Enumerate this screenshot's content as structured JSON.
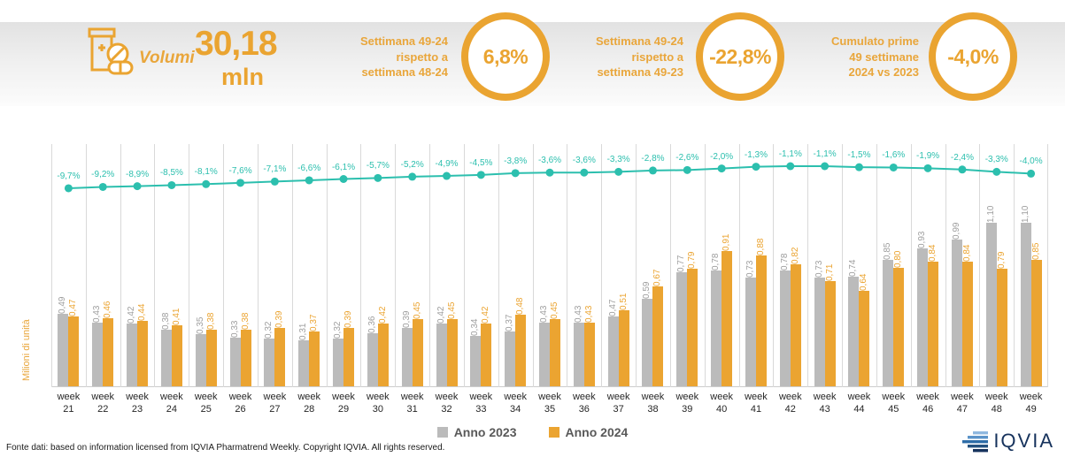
{
  "header": {
    "volumes_label": "Volumi",
    "volume_value": "30,18",
    "volume_unit": "mln",
    "kpis": [
      {
        "label": "Settimana 49-24\nrispetto a\nsettimana 48-24",
        "value": "6,8%"
      },
      {
        "label": "Settimana 49-24\nrispetto a\nsettimana 49-23",
        "value": "-22,8%"
      },
      {
        "label": "Cumulato prime\n49 settimane\n2024 vs 2023",
        "value": "-4,0%"
      }
    ]
  },
  "chart_data": {
    "type": "bar",
    "title": "",
    "ylabel": "Milioni di unità",
    "ylim": [
      0,
      1.2
    ],
    "grid": "vertical",
    "legend_position": "bottom",
    "categories": [
      "week 21",
      "week 22",
      "week 23",
      "week 24",
      "week 25",
      "week 26",
      "week 27",
      "week 28",
      "week 29",
      "week 30",
      "week 31",
      "week 32",
      "week 33",
      "week 34",
      "week 35",
      "week 36",
      "week 37",
      "week 38",
      "week 39",
      "week 40",
      "week 41",
      "week 42",
      "week 43",
      "week 44",
      "week 45",
      "week 46",
      "week 47",
      "week 48",
      "week 49"
    ],
    "series": [
      {
        "name": "Anno 2023",
        "color": "#bbbbbb",
        "label_color": "#9e9e9e",
        "values": [
          0.49,
          0.43,
          0.42,
          0.38,
          0.35,
          0.33,
          0.32,
          0.31,
          0.32,
          0.36,
          0.39,
          0.42,
          0.34,
          0.37,
          0.43,
          0.43,
          0.47,
          0.59,
          0.77,
          0.78,
          0.73,
          0.78,
          0.73,
          0.74,
          0.85,
          0.93,
          0.99,
          1.1,
          1.1
        ]
      },
      {
        "name": "Anno 2024",
        "color": "#eba431",
        "label_color": "#eba431",
        "values": [
          0.47,
          0.46,
          0.44,
          0.41,
          0.38,
          0.38,
          0.39,
          0.37,
          0.39,
          0.42,
          0.45,
          0.45,
          0.42,
          0.48,
          0.45,
          0.43,
          0.51,
          0.67,
          0.79,
          0.91,
          0.88,
          0.82,
          0.71,
          0.64,
          0.8,
          0.84,
          0.84,
          0.79,
          0.85
        ]
      }
    ],
    "line_pct": {
      "color": "#2cbfae",
      "values": [
        -9.7,
        -9.2,
        -8.9,
        -8.5,
        -8.1,
        -7.6,
        -7.1,
        -6.6,
        -6.1,
        -5.7,
        -5.2,
        -4.9,
        -4.5,
        -3.8,
        -3.6,
        -3.6,
        -3.3,
        -2.8,
        -2.6,
        -2.0,
        -1.3,
        -1.1,
        -1.1,
        -1.5,
        -1.6,
        -1.9,
        -2.4,
        -3.3,
        -4.0
      ]
    }
  },
  "legend": {
    "items": [
      {
        "label": "Anno 2023",
        "color": "#bbbbbb"
      },
      {
        "label": "Anno 2024",
        "color": "#eba431"
      }
    ]
  },
  "footer": {
    "source": "Fonte dati: based on information licensed from IQVIA Pharmatrend Weekly. Copyright IQVIA. All rights reserved.",
    "logo_text": "IQVIA"
  },
  "colors": {
    "accent_orange": "#eaa431",
    "bar_2023": "#bbbbbb",
    "bar_2024": "#eba431",
    "line_teal": "#2cbfae",
    "logo_navy": "#16325c"
  }
}
